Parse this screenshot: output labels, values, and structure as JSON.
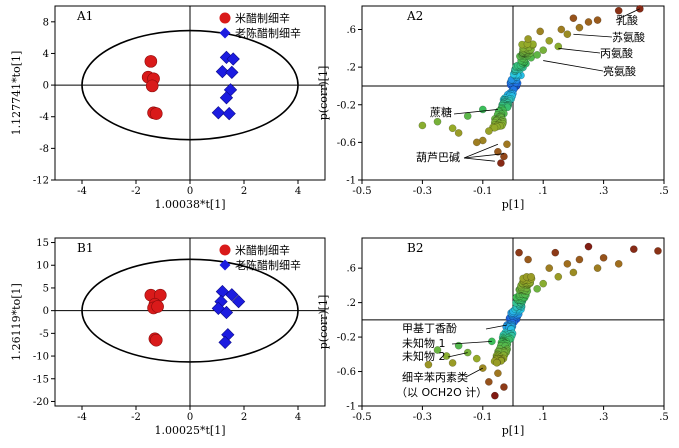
{
  "chart_data": [
    {
      "id": "A1",
      "type": "scatter",
      "panel_label": "A1",
      "xlabel": "1.00038*t[1]",
      "ylabel": "1.127741*to[1]",
      "xlim": [
        -5,
        5
      ],
      "ylim": [
        -12,
        10
      ],
      "xticks": [
        -4,
        -2,
        0,
        2,
        4
      ],
      "yticks": [
        -12,
        -8,
        -4,
        0,
        4,
        8
      ],
      "ellipse": {
        "rx": 4.0,
        "ry": 6.9
      },
      "series": [
        {
          "name": "米醋制细辛",
          "color": "#d91a1a",
          "marker": "circle",
          "points": [
            [
              -1.45,
              3.0
            ],
            [
              -1.55,
              1.0
            ],
            [
              -1.35,
              0.8
            ],
            [
              -1.4,
              -0.1
            ],
            [
              -1.35,
              -3.5
            ],
            [
              -1.25,
              -3.6
            ]
          ]
        },
        {
          "name": "老陈醋制细辛",
          "color": "#1c1ce0",
          "marker": "diamond",
          "points": [
            [
              1.35,
              3.5
            ],
            [
              1.6,
              3.3
            ],
            [
              1.2,
              1.7
            ],
            [
              1.55,
              1.6
            ],
            [
              1.5,
              -0.6
            ],
            [
              1.35,
              -1.6
            ],
            [
              1.05,
              -3.5
            ],
            [
              1.45,
              -3.6
            ]
          ]
        }
      ]
    },
    {
      "id": "A2",
      "type": "scatter",
      "panel_label": "A2",
      "xlabel": "p[1]",
      "ylabel": "p(corr)[1]",
      "xlim": [
        -0.5,
        0.5
      ],
      "ylim": [
        -1.0,
        0.85
      ],
      "xticks": [
        -0.5,
        -0.3,
        -0.1,
        0.1,
        0.3,
        0.5
      ],
      "yticks": [
        -1.0,
        -0.6,
        -0.2,
        0.2,
        0.6
      ],
      "annotations": [
        {
          "text": "乳酸",
          "point": [
            0.42,
            0.82
          ]
        },
        {
          "text": "苏氨酸",
          "point": [
            0.2,
            0.55
          ]
        },
        {
          "text": "丙氨酸",
          "point": [
            0.15,
            0.4
          ]
        },
        {
          "text": "亮氨酸",
          "point": [
            0.1,
            0.27
          ]
        },
        {
          "text": "蔗糖",
          "point": [
            -0.05,
            -0.25
          ]
        },
        {
          "text": "葫芦巴碱",
          "point": [
            -0.03,
            -0.72
          ]
        }
      ]
    },
    {
      "id": "B1",
      "type": "scatter",
      "panel_label": "B1",
      "xlabel": "1.00025*t[1]",
      "ylabel": "1.26119*to[1]",
      "xlim": [
        -5,
        5
      ],
      "ylim": [
        -21,
        16
      ],
      "xticks": [
        -4,
        -2,
        0,
        2,
        4
      ],
      "yticks": [
        -20,
        -15,
        -10,
        -5,
        0,
        5,
        10,
        15
      ],
      "ellipse": {
        "rx": 4.0,
        "ry": 11.3
      },
      "series": [
        {
          "name": "米醋制细辛",
          "color": "#d91a1a",
          "marker": "circle",
          "points": [
            [
              -1.45,
              3.4
            ],
            [
              -1.1,
              3.4
            ],
            [
              -1.3,
              1.4
            ],
            [
              -1.35,
              0.6
            ],
            [
              -1.2,
              0.9
            ],
            [
              -1.3,
              -6.2
            ],
            [
              -1.25,
              -6.5
            ]
          ]
        },
        {
          "name": "老陈醋制细辛",
          "color": "#1c1ce0",
          "marker": "diamond",
          "points": [
            [
              1.2,
              4.2
            ],
            [
              1.55,
              3.5
            ],
            [
              1.15,
              2.0
            ],
            [
              1.8,
              2.0
            ],
            [
              1.05,
              0.5
            ],
            [
              1.35,
              -0.4
            ],
            [
              1.4,
              -5.3
            ],
            [
              1.3,
              -7.0
            ]
          ]
        }
      ]
    },
    {
      "id": "B2",
      "type": "scatter",
      "panel_label": "B2",
      "xlabel": "p[1]",
      "ylabel": "p(corr)[1]",
      "xlim": [
        -0.5,
        0.5
      ],
      "ylim": [
        -1.0,
        0.95
      ],
      "xticks": [
        -0.5,
        -0.3,
        -0.1,
        0.1,
        0.3,
        0.5
      ],
      "yticks": [
        -1.0,
        -0.6,
        -0.2,
        0.2,
        0.6
      ],
      "annotations": [
        {
          "text": "甲基丁香酚",
          "point": [
            -0.02,
            -0.06
          ]
        },
        {
          "text": "未知物 1",
          "point": [
            -0.07,
            -0.25
          ]
        },
        {
          "text": "未知物 2",
          "point": [
            -0.15,
            -0.38
          ]
        },
        {
          "text": "细辛苯丙素类",
          "point": [
            -0.1,
            -0.56
          ]
        },
        {
          "text": "（以 OCH2O 计）",
          "point": null
        }
      ]
    }
  ]
}
